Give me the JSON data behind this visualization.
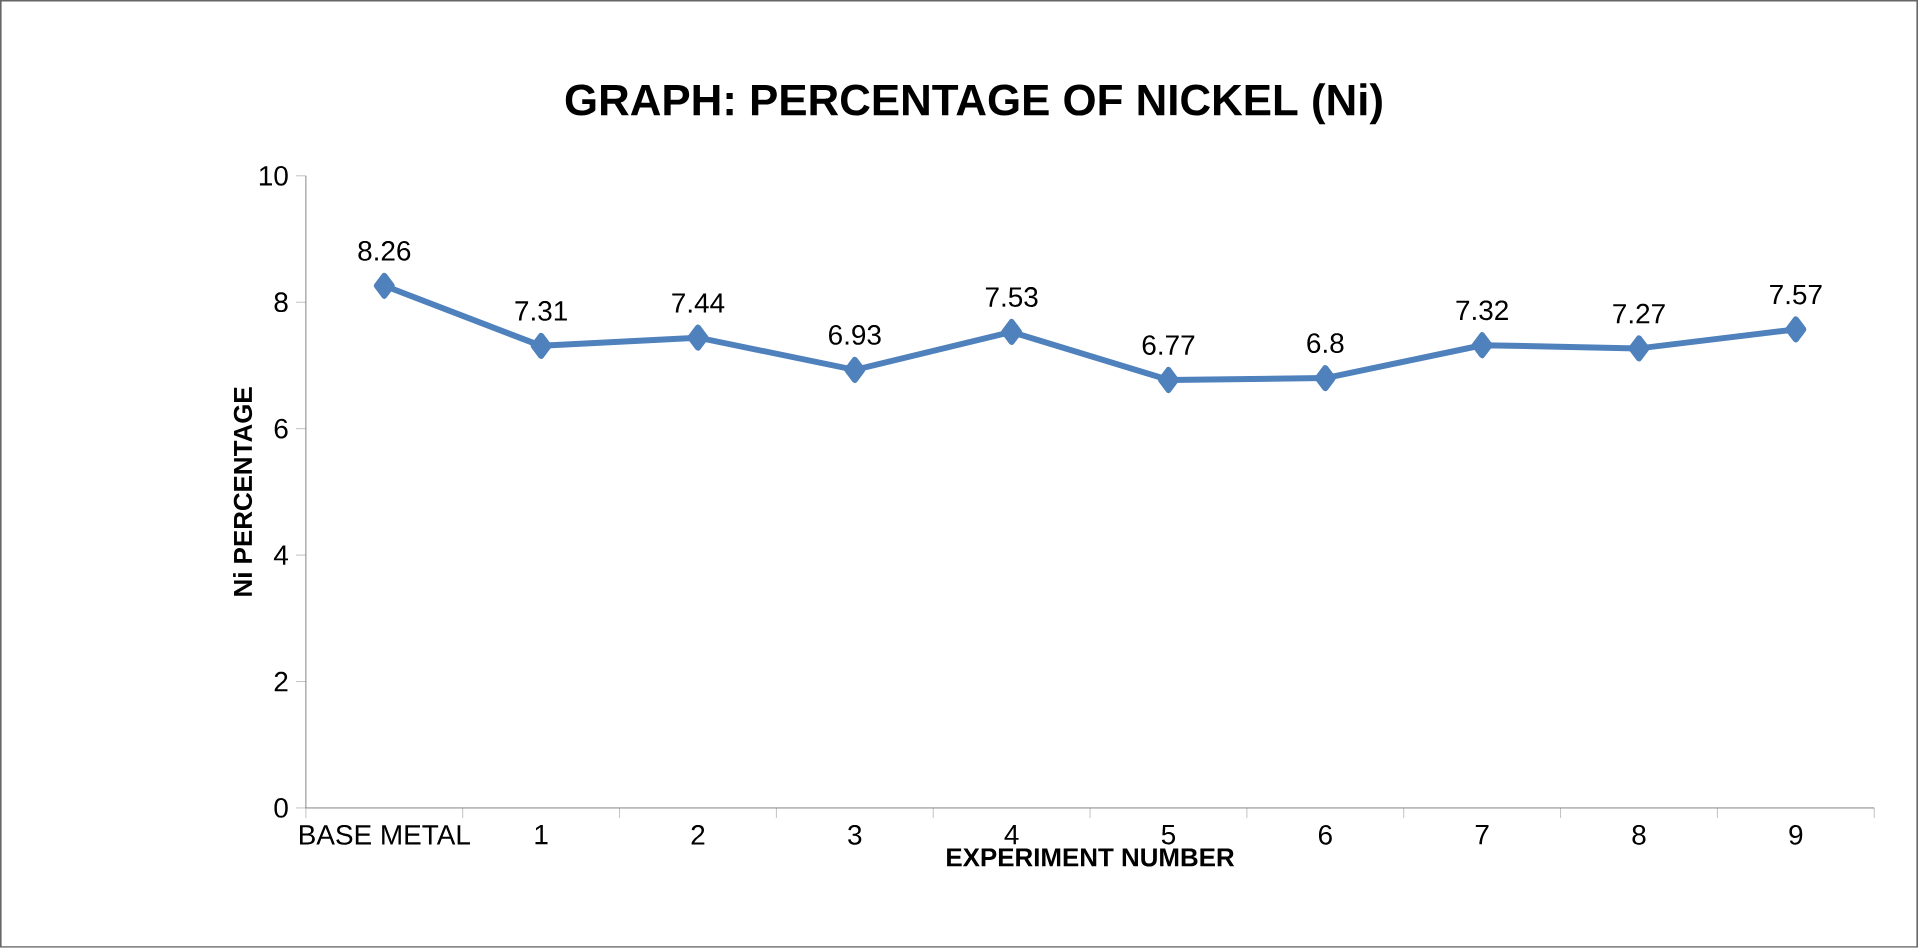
{
  "chart_data": {
    "type": "line",
    "title": "GRAPH: PERCENTAGE OF NICKEL (Ni)",
    "xlabel": "EXPERIMENT NUMBER",
    "ylabel": "Ni PERCENTAGE",
    "categories": [
      "BASE METAL",
      "1",
      "2",
      "3",
      "4",
      "5",
      "6",
      "7",
      "8",
      "9"
    ],
    "values": [
      8.26,
      7.31,
      7.44,
      6.93,
      7.53,
      6.77,
      6.8,
      7.32,
      7.27,
      7.57
    ],
    "color": "#4f81bd",
    "marker": "diamond",
    "line_style": "solid",
    "ylim": [
      0,
      10
    ],
    "yticks": [
      0,
      2,
      4,
      6,
      8,
      10
    ],
    "data_labels": true
  }
}
